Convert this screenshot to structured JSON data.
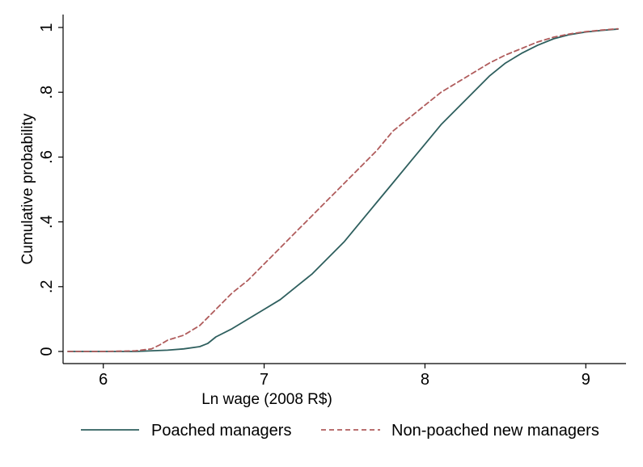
{
  "chart_data": {
    "type": "line",
    "title": "",
    "xlabel": "Ln wage (2008 R$)",
    "ylabel": "Cumulative probability",
    "xlim": [
      5.75,
      9.25
    ],
    "ylim": [
      0,
      1
    ],
    "xticks": [
      6,
      7,
      8,
      9
    ],
    "xtick_labels": [
      "6",
      "7",
      "8",
      "9"
    ],
    "yticks": [
      0,
      0.2,
      0.4,
      0.6,
      0.8,
      1
    ],
    "ytick_labels": [
      "0",
      ".2",
      ".4",
      ".6",
      ".8",
      "1"
    ],
    "grid": false,
    "legend_position": "bottom",
    "series": [
      {
        "name": "Poached managers",
        "color": "#2e5f5e",
        "style": "solid",
        "x": [
          5.78,
          6.0,
          6.2,
          6.4,
          6.5,
          6.6,
          6.65,
          6.7,
          6.8,
          6.9,
          7.0,
          7.1,
          7.2,
          7.3,
          7.4,
          7.5,
          7.6,
          7.7,
          7.8,
          7.9,
          8.0,
          8.1,
          8.2,
          8.3,
          8.4,
          8.5,
          8.6,
          8.7,
          8.8,
          8.9,
          9.0,
          9.1,
          9.2
        ],
        "y": [
          0.0,
          0.0,
          0.0,
          0.004,
          0.008,
          0.015,
          0.025,
          0.045,
          0.07,
          0.1,
          0.13,
          0.16,
          0.2,
          0.24,
          0.29,
          0.34,
          0.4,
          0.46,
          0.52,
          0.58,
          0.64,
          0.7,
          0.75,
          0.8,
          0.85,
          0.89,
          0.92,
          0.945,
          0.965,
          0.978,
          0.986,
          0.991,
          0.995
        ]
      },
      {
        "name": "Non-poached new managers",
        "color": "#b05c5c",
        "style": "dashed",
        "x": [
          5.78,
          6.0,
          6.2,
          6.3,
          6.35,
          6.4,
          6.5,
          6.6,
          6.7,
          6.8,
          6.9,
          7.0,
          7.1,
          7.2,
          7.3,
          7.4,
          7.5,
          7.6,
          7.7,
          7.8,
          7.9,
          8.0,
          8.1,
          8.2,
          8.3,
          8.4,
          8.5,
          8.6,
          8.7,
          8.8,
          8.9,
          9.0,
          9.1,
          9.2
        ],
        "y": [
          0.0,
          0.0,
          0.002,
          0.008,
          0.02,
          0.035,
          0.05,
          0.08,
          0.13,
          0.18,
          0.22,
          0.27,
          0.32,
          0.37,
          0.42,
          0.47,
          0.52,
          0.57,
          0.62,
          0.68,
          0.72,
          0.76,
          0.8,
          0.83,
          0.86,
          0.89,
          0.915,
          0.935,
          0.955,
          0.97,
          0.98,
          0.987,
          0.992,
          0.996
        ]
      }
    ]
  }
}
